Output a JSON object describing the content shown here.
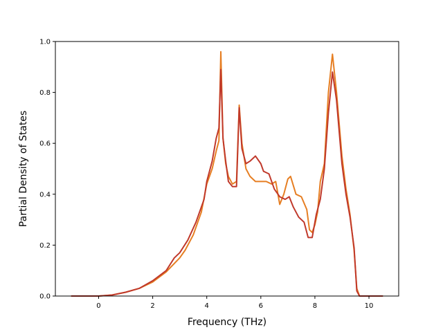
{
  "chart_data": {
    "type": "line",
    "title": "",
    "xlabel": "Frequency (THz)",
    "ylabel": "Partial Density of States",
    "xlim": [
      -1.6,
      11.1
    ],
    "ylim": [
      0.0,
      1.0
    ],
    "xticks": [
      0,
      2,
      4,
      6,
      8,
      10
    ],
    "xtick_labels": [
      "0",
      "2",
      "4",
      "6",
      "8",
      "10"
    ],
    "yticks": [
      0.0,
      0.2,
      0.4,
      0.6,
      0.8,
      1.0
    ],
    "ytick_labels": [
      "0.0",
      "0.2",
      "0.4",
      "0.6",
      "0.8",
      "1.0"
    ],
    "grid": false,
    "series": [
      {
        "color": "#e67e22",
        "points": [
          [
            -1.0,
            0.0
          ],
          [
            0.0,
            0.0
          ],
          [
            0.5,
            0.004
          ],
          [
            1.0,
            0.015
          ],
          [
            1.5,
            0.03
          ],
          [
            2.0,
            0.055
          ],
          [
            2.5,
            0.095
          ],
          [
            3.0,
            0.15
          ],
          [
            3.2,
            0.18
          ],
          [
            3.5,
            0.24
          ],
          [
            3.8,
            0.33
          ],
          [
            4.0,
            0.44
          ],
          [
            4.2,
            0.5
          ],
          [
            4.35,
            0.57
          ],
          [
            4.45,
            0.61
          ],
          [
            4.52,
            0.96
          ],
          [
            4.6,
            0.62
          ],
          [
            4.7,
            0.52
          ],
          [
            4.8,
            0.47
          ],
          [
            4.95,
            0.44
          ],
          [
            5.1,
            0.45
          ],
          [
            5.2,
            0.75
          ],
          [
            5.3,
            0.6
          ],
          [
            5.45,
            0.5
          ],
          [
            5.6,
            0.47
          ],
          [
            5.8,
            0.45
          ],
          [
            6.0,
            0.45
          ],
          [
            6.2,
            0.45
          ],
          [
            6.4,
            0.44
          ],
          [
            6.55,
            0.45
          ],
          [
            6.7,
            0.36
          ],
          [
            6.85,
            0.4
          ],
          [
            7.0,
            0.46
          ],
          [
            7.1,
            0.47
          ],
          [
            7.3,
            0.4
          ],
          [
            7.5,
            0.39
          ],
          [
            7.7,
            0.34
          ],
          [
            7.8,
            0.26
          ],
          [
            7.9,
            0.25
          ],
          [
            8.0,
            0.28
          ],
          [
            8.1,
            0.33
          ],
          [
            8.2,
            0.45
          ],
          [
            8.35,
            0.52
          ],
          [
            8.5,
            0.8
          ],
          [
            8.65,
            0.95
          ],
          [
            8.8,
            0.8
          ],
          [
            9.0,
            0.55
          ],
          [
            9.15,
            0.42
          ],
          [
            9.3,
            0.32
          ],
          [
            9.45,
            0.18
          ],
          [
            9.55,
            0.03
          ],
          [
            9.65,
            0.0
          ],
          [
            10.5,
            0.0
          ]
        ]
      },
      {
        "color": "#c0392b",
        "points": [
          [
            -1.0,
            0.0
          ],
          [
            0.0,
            0.0
          ],
          [
            0.5,
            0.004
          ],
          [
            1.0,
            0.015
          ],
          [
            1.5,
            0.03
          ],
          [
            2.0,
            0.06
          ],
          [
            2.5,
            0.1
          ],
          [
            2.8,
            0.15
          ],
          [
            3.0,
            0.17
          ],
          [
            3.3,
            0.22
          ],
          [
            3.6,
            0.29
          ],
          [
            3.9,
            0.38
          ],
          [
            4.0,
            0.45
          ],
          [
            4.2,
            0.53
          ],
          [
            4.35,
            0.62
          ],
          [
            4.45,
            0.66
          ],
          [
            4.52,
            0.89
          ],
          [
            4.6,
            0.62
          ],
          [
            4.7,
            0.53
          ],
          [
            4.8,
            0.45
          ],
          [
            4.95,
            0.43
          ],
          [
            5.1,
            0.43
          ],
          [
            5.2,
            0.74
          ],
          [
            5.3,
            0.58
          ],
          [
            5.45,
            0.52
          ],
          [
            5.6,
            0.53
          ],
          [
            5.8,
            0.55
          ],
          [
            6.0,
            0.52
          ],
          [
            6.1,
            0.49
          ],
          [
            6.3,
            0.48
          ],
          [
            6.5,
            0.42
          ],
          [
            6.7,
            0.39
          ],
          [
            6.9,
            0.38
          ],
          [
            7.05,
            0.39
          ],
          [
            7.2,
            0.35
          ],
          [
            7.4,
            0.31
          ],
          [
            7.6,
            0.29
          ],
          [
            7.75,
            0.23
          ],
          [
            7.9,
            0.23
          ],
          [
            8.05,
            0.32
          ],
          [
            8.2,
            0.38
          ],
          [
            8.35,
            0.5
          ],
          [
            8.5,
            0.72
          ],
          [
            8.65,
            0.88
          ],
          [
            8.8,
            0.77
          ],
          [
            9.0,
            0.52
          ],
          [
            9.15,
            0.4
          ],
          [
            9.3,
            0.31
          ],
          [
            9.45,
            0.19
          ],
          [
            9.55,
            0.02
          ],
          [
            9.65,
            0.0
          ],
          [
            10.5,
            0.0
          ]
        ]
      }
    ]
  }
}
